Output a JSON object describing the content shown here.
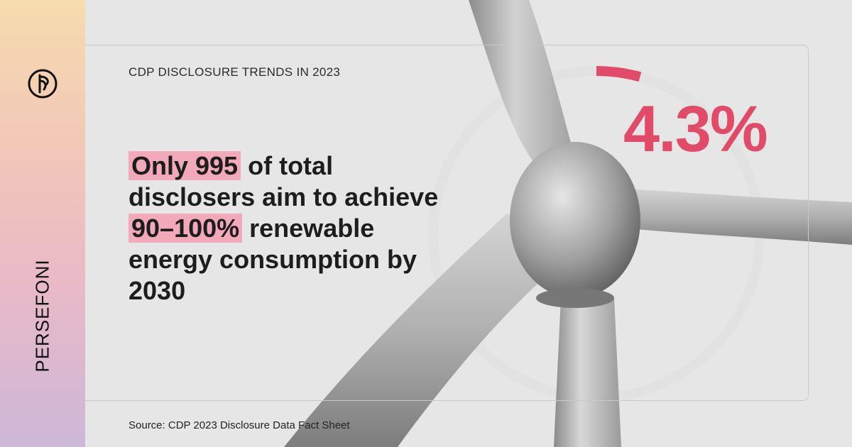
{
  "brand": {
    "name": "PERSEFONI"
  },
  "eyebrow": "CDP DISCLOSURE TRENDS IN 2023",
  "headline": {
    "h1": "Only 995",
    "p1": " of total disclosers aim to achieve ",
    "h2": "90–100%",
    "p2": " renewable energy consumption by 2030"
  },
  "stat": {
    "label": "4.3%",
    "value_percent": 4.3
  },
  "source": "Source: CDP 2023 Disclosure Data Fact Sheet",
  "colors": {
    "accent": "#e14a68",
    "highlight": "#f2a9b9",
    "ring": "#e2e2e2"
  }
}
